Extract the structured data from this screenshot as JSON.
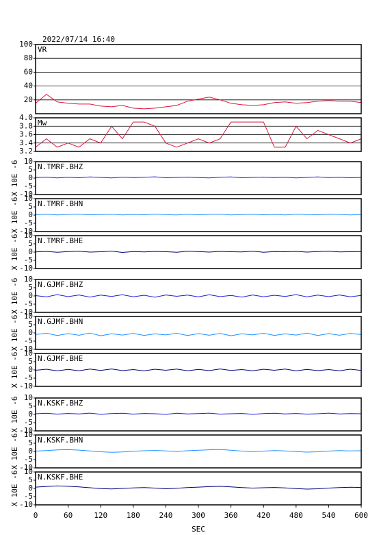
{
  "chart_data": [
    {
      "type": "line",
      "title": "2022/07/14 16:40",
      "label": "VR",
      "ylim": [
        0,
        100
      ],
      "yticks": [
        20,
        40,
        60,
        80,
        100
      ],
      "grid": true,
      "x": [
        0,
        20,
        40,
        60,
        80,
        100,
        120,
        140,
        160,
        180,
        200,
        220,
        240,
        260,
        280,
        300,
        320,
        340,
        360,
        380,
        400,
        420,
        440,
        460,
        480,
        500,
        520,
        540,
        560,
        580,
        600
      ],
      "series": [
        {
          "color": "#dc143c",
          "values": [
            15,
            28,
            17,
            15,
            14,
            14,
            11,
            10,
            12,
            8,
            7,
            8,
            10,
            12,
            18,
            21,
            24,
            20,
            15,
            13,
            12,
            13,
            16,
            17,
            15,
            16,
            18,
            19,
            18,
            18,
            16
          ]
        }
      ]
    },
    {
      "type": "line",
      "label": "Mw",
      "ylim": [
        3.2,
        4.0
      ],
      "yticks": [
        3.2,
        3.4,
        3.6,
        3.8,
        {
          "value": 4.0,
          "label": "4.0"
        }
      ],
      "grid": true,
      "x": [
        0,
        20,
        40,
        60,
        80,
        100,
        120,
        140,
        160,
        180,
        200,
        220,
        240,
        260,
        280,
        300,
        320,
        340,
        360,
        380,
        400,
        420,
        440,
        460,
        480,
        500,
        520,
        540,
        560,
        580,
        600
      ],
      "series": [
        {
          "color": "#dc143c",
          "values": [
            3.3,
            3.5,
            3.3,
            3.4,
            3.3,
            3.5,
            3.4,
            3.8,
            3.5,
            3.9,
            3.9,
            3.8,
            3.4,
            3.3,
            3.4,
            3.5,
            3.4,
            3.5,
            3.9,
            3.9,
            3.9,
            3.9,
            3.3,
            3.3,
            3.8,
            3.5,
            3.7,
            3.6,
            3.5,
            3.4,
            3.5
          ]
        }
      ]
    },
    {
      "type": "line",
      "label": "N.TMRF.BHZ",
      "ylabel": "X 10E -6",
      "ylim": [
        -10,
        10
      ],
      "yticks": [
        -10,
        -5,
        0,
        5,
        10
      ],
      "grid": false,
      "x": [
        0,
        20,
        40,
        60,
        80,
        100,
        120,
        140,
        160,
        180,
        200,
        220,
        240,
        260,
        280,
        300,
        320,
        340,
        360,
        380,
        400,
        420,
        440,
        460,
        480,
        500,
        520,
        540,
        560,
        580,
        600
      ],
      "series": [
        {
          "color": "#1a1adc",
          "values": [
            0.3,
            0.6,
            0.1,
            0.5,
            0.2,
            0.7,
            0.4,
            0.1,
            0.6,
            0.3,
            0.5,
            0.8,
            0.2,
            0.4,
            0.6,
            0.3,
            0.1,
            0.5,
            0.7,
            0.2,
            0.4,
            0.6,
            0.3,
            0.5,
            0.1,
            0.4,
            0.7,
            0.3,
            0.5,
            0.2,
            0.4
          ]
        }
      ]
    },
    {
      "type": "line",
      "label": "N.TMRF.BHN",
      "ylabel": "X 10E -6",
      "ylim": [
        -10,
        10
      ],
      "yticks": [
        -10,
        -5,
        0,
        5,
        10
      ],
      "grid": false,
      "x": [
        0,
        20,
        40,
        60,
        80,
        100,
        120,
        140,
        160,
        180,
        200,
        220,
        240,
        260,
        280,
        300,
        320,
        340,
        360,
        380,
        400,
        420,
        440,
        460,
        480,
        500,
        520,
        540,
        560,
        580,
        600
      ],
      "series": [
        {
          "color": "#1e90ff",
          "values": [
            0.2,
            0.5,
            0.1,
            0.4,
            0.6,
            0.2,
            0.3,
            0.5,
            0.1,
            0.4,
            0.2,
            0.6,
            0.3,
            0.1,
            0.5,
            0.2,
            0.4,
            0.6,
            0.1,
            0.3,
            0.5,
            0.2,
            0.4,
            0.1,
            0.6,
            0.3,
            0.2,
            0.5,
            0.4,
            0.1,
            0.3
          ]
        }
      ]
    },
    {
      "type": "line",
      "label": "N.TMRF.BHE",
      "ylabel": "X 10E -6",
      "ylim": [
        -10,
        10
      ],
      "yticks": [
        -10,
        -5,
        0,
        5,
        10
      ],
      "grid": false,
      "x": [
        0,
        20,
        40,
        60,
        80,
        100,
        120,
        140,
        160,
        180,
        200,
        220,
        240,
        260,
        280,
        300,
        320,
        340,
        360,
        380,
        400,
        420,
        440,
        460,
        480,
        500,
        520,
        540,
        560,
        580,
        600
      ],
      "series": [
        {
          "color": "#000080",
          "values": [
            0.1,
            0.4,
            -0.1,
            0.3,
            0.5,
            0.0,
            0.2,
            0.6,
            -0.2,
            0.3,
            0.1,
            0.4,
            0.2,
            -0.1,
            0.5,
            0.3,
            0.0,
            0.4,
            0.2,
            0.1,
            0.5,
            -0.1,
            0.3,
            0.2,
            0.4,
            0.0,
            0.3,
            0.5,
            0.1,
            0.2,
            0.3
          ]
        }
      ]
    },
    {
      "type": "line",
      "label": "N.GJMF.BHZ",
      "ylabel": "X 10E -6",
      "ylim": [
        -10,
        10
      ],
      "yticks": [
        -10,
        -5,
        0,
        5,
        10
      ],
      "grid": false,
      "x": [
        0,
        20,
        40,
        60,
        80,
        100,
        120,
        140,
        160,
        180,
        200,
        220,
        240,
        260,
        280,
        300,
        320,
        340,
        360,
        380,
        400,
        420,
        440,
        460,
        480,
        500,
        520,
        540,
        560,
        580,
        600
      ],
      "series": [
        {
          "color": "#1a1adc",
          "values": [
            0.2,
            -0.6,
            0.8,
            -0.4,
            0.6,
            -0.7,
            0.5,
            -0.3,
            0.7,
            -0.5,
            0.4,
            -0.8,
            0.6,
            -0.2,
            0.5,
            -0.6,
            0.7,
            -0.4,
            0.3,
            -0.7,
            0.6,
            -0.5,
            0.4,
            -0.3,
            0.8,
            -0.6,
            0.5,
            -0.4,
            0.6,
            -0.5,
            0.3
          ]
        }
      ]
    },
    {
      "type": "line",
      "label": "N.GJMF.BHN",
      "ylabel": "X 10E -6",
      "ylim": [
        -10,
        10
      ],
      "yticks": [
        -10,
        -5,
        0,
        5,
        10
      ],
      "grid": false,
      "x": [
        0,
        20,
        40,
        60,
        80,
        100,
        120,
        140,
        160,
        180,
        200,
        220,
        240,
        260,
        280,
        300,
        320,
        340,
        360,
        380,
        400,
        420,
        440,
        460,
        480,
        500,
        520,
        540,
        560,
        580,
        600
      ],
      "series": [
        {
          "color": "#1e90ff",
          "values": [
            -0.9,
            -0.2,
            -1.6,
            -0.4,
            -1.4,
            -0.1,
            -1.7,
            -0.5,
            -1.3,
            -0.3,
            -1.5,
            -0.6,
            -1.2,
            -0.2,
            -1.6,
            -0.4,
            -1.4,
            -0.3,
            -1.7,
            -0.5,
            -1.2,
            -0.2,
            -1.5,
            -0.6,
            -1.3,
            -0.1,
            -1.6,
            -0.4,
            -1.4,
            -0.3,
            -1.0
          ]
        }
      ]
    },
    {
      "type": "line",
      "label": "N.GJMF.BHE",
      "ylabel": "X 10E -6",
      "ylim": [
        -10,
        10
      ],
      "yticks": [
        -10,
        -5,
        0,
        5,
        10
      ],
      "grid": false,
      "x": [
        0,
        20,
        40,
        60,
        80,
        100,
        120,
        140,
        160,
        180,
        200,
        220,
        240,
        260,
        280,
        300,
        320,
        340,
        360,
        380,
        400,
        420,
        440,
        460,
        480,
        500,
        520,
        540,
        560,
        580,
        600
      ],
      "series": [
        {
          "color": "#000080",
          "values": [
            -0.2,
            0.4,
            -0.6,
            0.3,
            -0.5,
            0.5,
            -0.3,
            0.6,
            -0.4,
            0.2,
            -0.6,
            0.4,
            -0.2,
            0.5,
            -0.5,
            0.3,
            -0.4,
            0.6,
            -0.3,
            0.2,
            -0.5,
            0.4,
            -0.2,
            0.5,
            -0.6,
            0.3,
            -0.4,
            0.2,
            -0.5,
            0.4,
            -0.3
          ]
        }
      ]
    },
    {
      "type": "line",
      "label": "N.KSKF.BHZ",
      "ylabel": "X 10E -6",
      "ylim": [
        -10,
        10
      ],
      "yticks": [
        -10,
        -5,
        0,
        5,
        10
      ],
      "grid": false,
      "x": [
        0,
        20,
        40,
        60,
        80,
        100,
        120,
        140,
        160,
        180,
        200,
        220,
        240,
        260,
        280,
        300,
        320,
        340,
        360,
        380,
        400,
        420,
        440,
        460,
        480,
        500,
        520,
        540,
        560,
        580,
        600
      ],
      "series": [
        {
          "color": "#1a1adc",
          "values": [
            0.4,
            0.7,
            0.2,
            0.6,
            0.3,
            0.8,
            0.1,
            0.5,
            0.7,
            0.2,
            0.6,
            0.4,
            0.1,
            0.7,
            0.3,
            0.5,
            0.8,
            0.2,
            0.4,
            0.6,
            0.1,
            0.5,
            0.7,
            0.3,
            0.6,
            0.2,
            0.4,
            0.8,
            0.3,
            0.5,
            0.4
          ]
        }
      ]
    },
    {
      "type": "line",
      "label": "N.KSKF.BHN",
      "ylabel": "X 10E -6",
      "ylim": [
        -10,
        10
      ],
      "yticks": [
        -10,
        -5,
        0,
        5,
        10
      ],
      "grid": false,
      "x": [
        0,
        20,
        40,
        60,
        80,
        100,
        120,
        140,
        160,
        180,
        200,
        220,
        240,
        260,
        280,
        300,
        320,
        340,
        360,
        380,
        400,
        420,
        440,
        460,
        480,
        500,
        520,
        540,
        560,
        580,
        600
      ],
      "series": [
        {
          "color": "#1e90ff",
          "values": [
            0.2,
            0.5,
            0.9,
            1.1,
            0.8,
            0.3,
            -0.2,
            -0.5,
            -0.3,
            0.1,
            0.4,
            0.6,
            0.3,
            0.0,
            0.4,
            0.7,
            1.0,
            1.2,
            0.7,
            0.2,
            -0.1,
            0.2,
            0.5,
            0.3,
            -0.1,
            -0.4,
            -0.2,
            0.2,
            0.5,
            0.3,
            0.4
          ]
        }
      ]
    },
    {
      "type": "line",
      "label": "N.KSKF.BHE",
      "ylabel": "X 10E -6",
      "ylim": [
        -10,
        10
      ],
      "yticks": [
        -10,
        -5,
        0,
        5,
        10
      ],
      "grid": false,
      "x": [
        0,
        20,
        40,
        60,
        80,
        100,
        120,
        140,
        160,
        180,
        200,
        220,
        240,
        260,
        280,
        300,
        320,
        340,
        360,
        380,
        400,
        420,
        440,
        460,
        480,
        500,
        520,
        540,
        560,
        580,
        600
      ],
      "series": [
        {
          "color": "#000080",
          "values": [
            0.8,
            1.2,
            1.5,
            1.3,
            0.9,
            0.4,
            -0.1,
            -0.3,
            0.0,
            0.3,
            0.5,
            0.2,
            -0.2,
            0.1,
            0.5,
            0.8,
            1.1,
            1.3,
            0.9,
            0.5,
            0.2,
            0.4,
            0.6,
            0.3,
            -0.1,
            -0.4,
            -0.2,
            0.2,
            0.5,
            0.7,
            0.6
          ]
        }
      ],
      "xlim": [
        0,
        600
      ],
      "xticks": [
        0,
        60,
        120,
        180,
        240,
        300,
        360,
        420,
        480,
        540,
        600
      ],
      "xlabel": "SEC"
    }
  ]
}
